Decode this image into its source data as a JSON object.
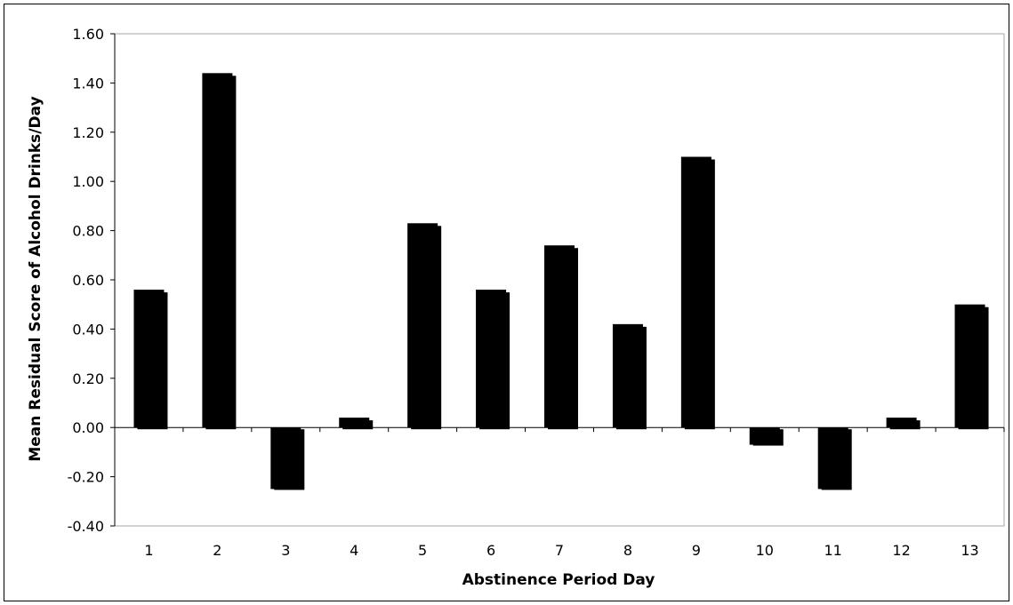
{
  "chart_data": {
    "type": "bar",
    "title": "",
    "xlabel": "Abstinence Period Day",
    "ylabel": "Mean Residual Score of Alcohol Drinks/Day",
    "categories": [
      "1",
      "2",
      "3",
      "4",
      "5",
      "6",
      "7",
      "8",
      "9",
      "10",
      "11",
      "12",
      "13"
    ],
    "values": [
      0.56,
      1.44,
      -0.25,
      0.04,
      0.83,
      0.56,
      0.74,
      0.42,
      1.1,
      -0.07,
      -0.25,
      0.04,
      0.5
    ],
    "ylim": [
      -0.4,
      1.6
    ],
    "yticks": [
      "-0.40",
      "-0.20",
      "0.00",
      "0.20",
      "0.40",
      "0.60",
      "0.80",
      "1.00",
      "1.20",
      "1.40",
      "1.60"
    ],
    "grid": false,
    "legend": "none",
    "bar_color": "#000000",
    "axis_color": "#000000",
    "frame_color": "#a6a6a6"
  }
}
